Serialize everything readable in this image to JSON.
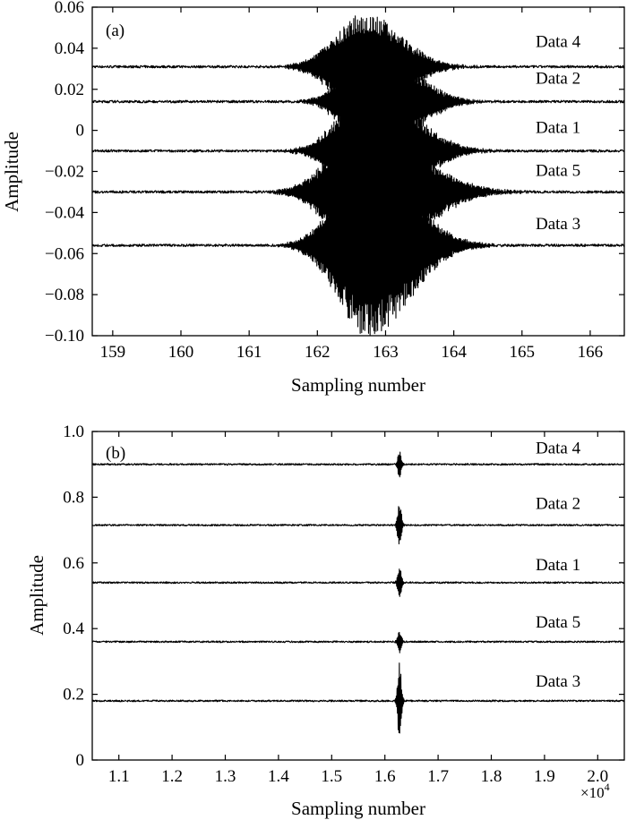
{
  "chart_data": [
    {
      "panel": "(a)",
      "type": "line",
      "xlabel": "Sampling number",
      "ylabel": "Amplitude",
      "xlim": [
        158.7,
        166.5
      ],
      "ylim": [
        -0.1,
        0.06
      ],
      "xticks": [
        159,
        160,
        161,
        162,
        163,
        164,
        165,
        166
      ],
      "xtick_labels": [
        "159",
        "160",
        "161",
        "162",
        "163",
        "164",
        "165",
        "166"
      ],
      "yticks": [
        0.06,
        0.04,
        0.02,
        0,
        -0.02,
        -0.04,
        -0.06,
        -0.08,
        -0.1
      ],
      "ytick_labels": [
        "0.06",
        "0.04",
        "0.02",
        "0",
        "−0.02",
        "−0.04",
        "−0.06",
        "−0.08",
        "−0.10"
      ],
      "grid": false,
      "series": [
        {
          "name": "Data 4",
          "baseline": 0.031,
          "burst_center": 162.7,
          "burst_amplitude": 0.026,
          "burst_start": 161.5,
          "burst_end": 164.3
        },
        {
          "name": "Data 2",
          "baseline": 0.014,
          "burst_center": 162.8,
          "burst_amplitude": 0.03,
          "burst_start": 161.8,
          "burst_end": 164.5
        },
        {
          "name": "Data 1",
          "baseline": -0.01,
          "burst_center": 162.8,
          "burst_amplitude": 0.034,
          "burst_start": 161.6,
          "burst_end": 164.6
        },
        {
          "name": "Data 5",
          "baseline": -0.03,
          "burst_center": 162.7,
          "burst_amplitude": 0.036,
          "burst_start": 161.4,
          "burst_end": 165.0
        },
        {
          "name": "Data 3",
          "baseline": -0.056,
          "burst_center": 162.75,
          "burst_amplitude": 0.045,
          "burst_start": 161.5,
          "burst_end": 164.6
        }
      ]
    },
    {
      "panel": "(b)",
      "type": "line",
      "xlabel": "Sampling number",
      "ylabel": "Amplitude",
      "x_scale_label": "×10",
      "x_scale_exponent": "4",
      "xlim": [
        1.05,
        2.05
      ],
      "ylim": [
        0,
        1.0
      ],
      "xticks": [
        1.1,
        1.2,
        1.3,
        1.4,
        1.5,
        1.6,
        1.7,
        1.8,
        1.9,
        2.0
      ],
      "xtick_labels": [
        "1.1",
        "1.2",
        "1.3",
        "1.4",
        "1.5",
        "1.6",
        "1.7",
        "1.8",
        "1.9",
        "2.0"
      ],
      "yticks": [
        1.0,
        0.8,
        0.6,
        0.4,
        0.2,
        0
      ],
      "ytick_labels": [
        "1.0",
        "0.8",
        "0.6",
        "0.4",
        "0.2",
        "0"
      ],
      "grid": false,
      "series": [
        {
          "name": "Data 4",
          "baseline": 0.9,
          "burst_center": 1.6275,
          "burst_amplitude": 0.04
        },
        {
          "name": "Data 2",
          "baseline": 0.715,
          "burst_center": 1.6275,
          "burst_amplitude": 0.07
        },
        {
          "name": "Data 1",
          "baseline": 0.54,
          "burst_center": 1.6275,
          "burst_amplitude": 0.045
        },
        {
          "name": "Data 5",
          "baseline": 0.36,
          "burst_center": 1.6275,
          "burst_amplitude": 0.035
        },
        {
          "name": "Data 3",
          "baseline": 0.18,
          "burst_center": 1.6275,
          "burst_amplitude": 0.12
        }
      ]
    }
  ]
}
